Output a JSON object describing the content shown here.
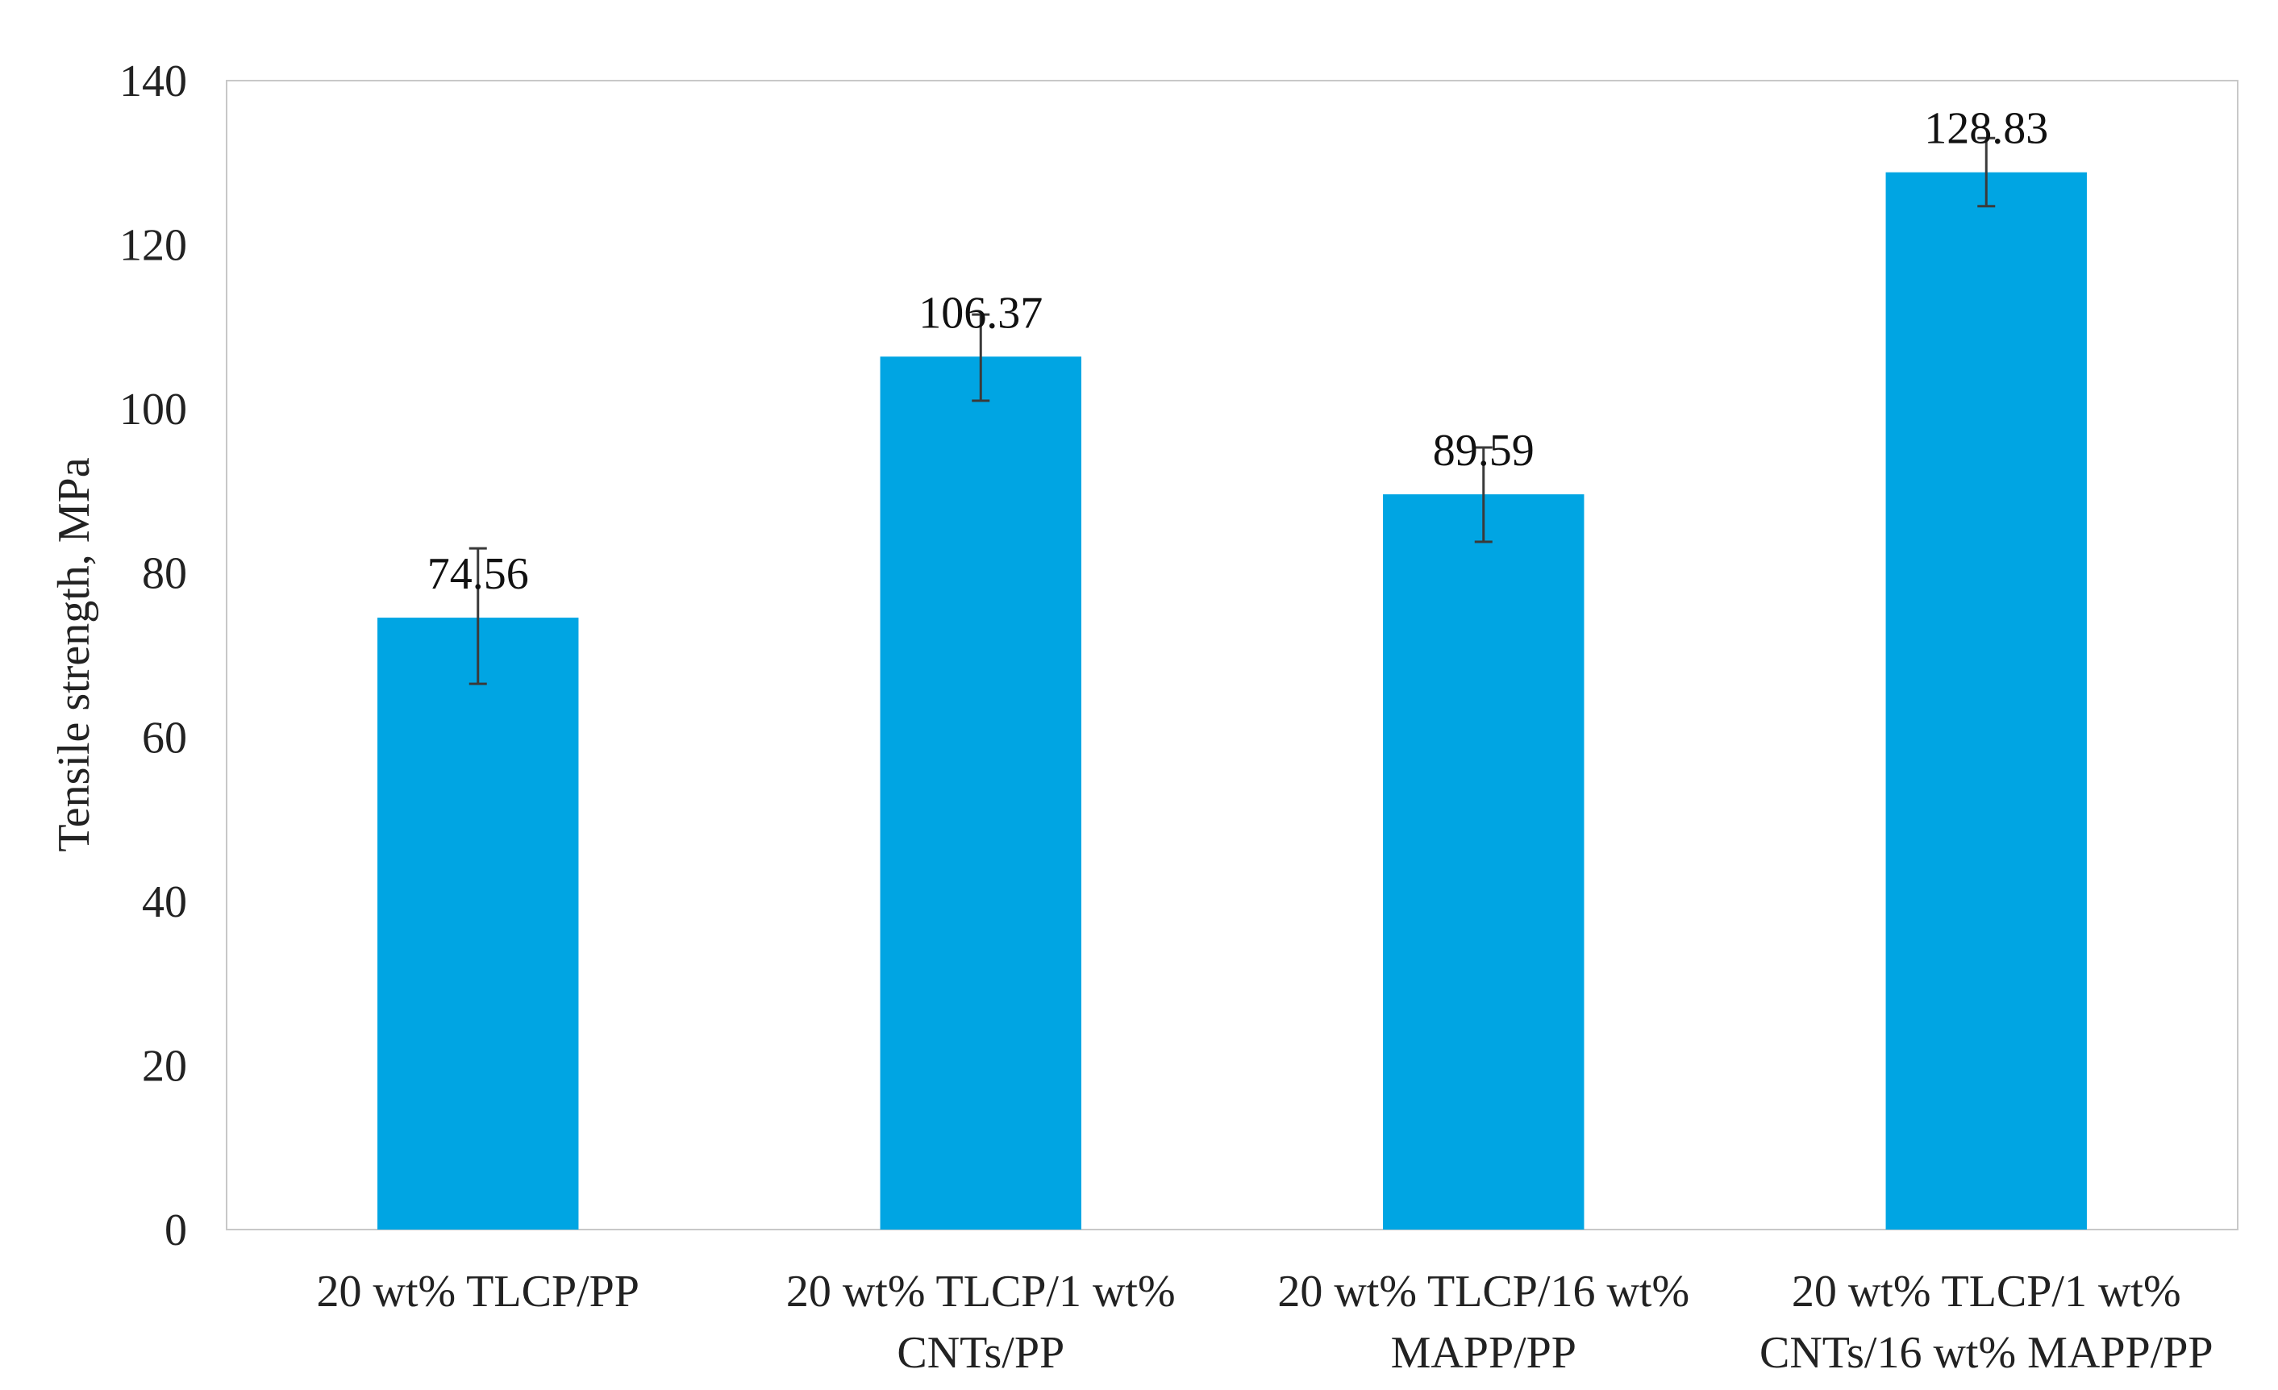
{
  "chart_data": {
    "type": "bar",
    "title": "",
    "xlabel": "",
    "ylabel": "Tensile strength, MPa",
    "ylim": [
      0,
      140
    ],
    "yticks": [
      0,
      20,
      40,
      60,
      80,
      100,
      120,
      140
    ],
    "ytick_labels": [
      "0",
      "20",
      "40",
      "60",
      "80",
      "100",
      "120",
      "140"
    ],
    "grid": false,
    "legend": "none",
    "categories": [
      [
        "20 wt% TLCP/PP"
      ],
      [
        "20 wt% TLCP/1 wt%",
        "CNTs/PP"
      ],
      [
        "20 wt% TLCP/16 wt%",
        "MAPP/PP"
      ],
      [
        "20 wt% TLCP/1 wt%",
        "CNTs/16 wt% MAPP/PP"
      ]
    ],
    "values": [
      74.56,
      106.37,
      89.59,
      128.83
    ],
    "data_labels": [
      "74.56",
      "106.37",
      "89.59",
      "128.83"
    ],
    "error_low": [
      66.5,
      101.0,
      83.8,
      124.7
    ],
    "error_high": [
      83.0,
      111.5,
      95.3,
      133.0
    ],
    "colors": {
      "bar": "#00A5E3",
      "errorbar": "#3a3a3a",
      "axis": "#c8c8c8"
    }
  }
}
